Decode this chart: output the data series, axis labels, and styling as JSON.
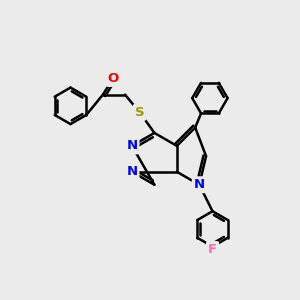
{
  "bg_color": "#ebebeb",
  "bond_color": "#000000",
  "bond_width": 1.8,
  "atom_colors": {
    "N": "#0000ff",
    "O": "#ff0000",
    "S": "#999900",
    "F": "#ff69b4",
    "C": "#000000"
  },
  "font_size": 9.5,
  "fig_size": [
    3.0,
    3.0
  ],
  "dpi": 100
}
